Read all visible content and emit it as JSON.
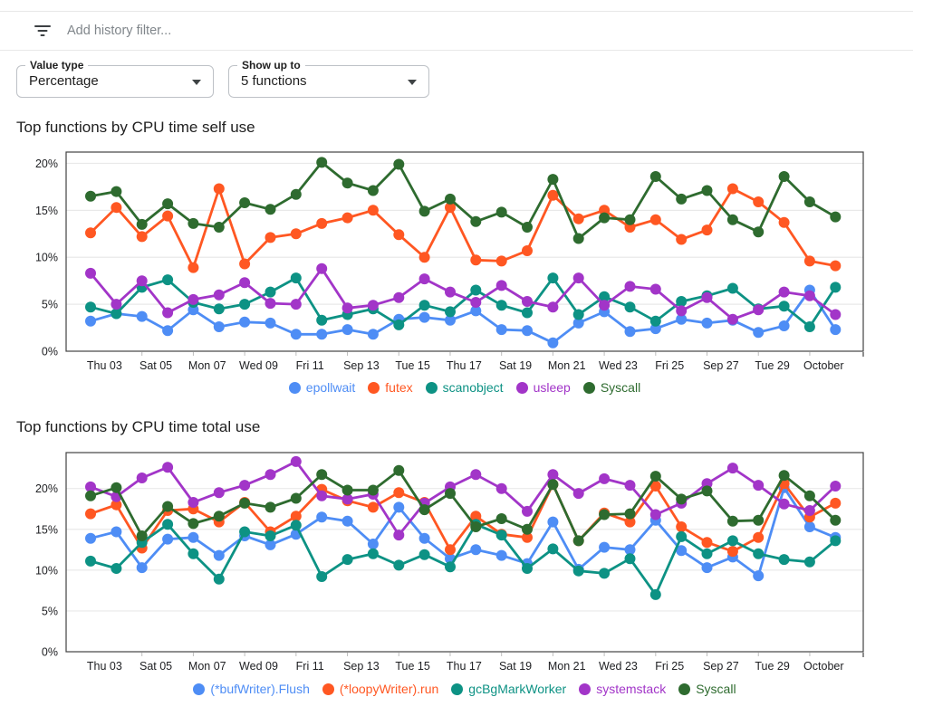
{
  "header": {
    "filter_placeholder": "Add history filter..."
  },
  "controls": {
    "value_type": {
      "label": "Value type",
      "value": "Percentage"
    },
    "show_up_to": {
      "label": "Show up to",
      "value": "5 functions"
    }
  },
  "colors": {
    "series_blue": "#4e8df5",
    "series_orange": "#ff5722",
    "series_teal": "#0d9284",
    "series_purple": "#a235c8",
    "series_green": "#2e6b2f",
    "axis_border": "#424242",
    "gridline": "#e9e9e9",
    "axis_text": "#202124"
  },
  "chart_data": [
    {
      "type": "line",
      "title": "Top functions by CPU time self use",
      "xlabel": "",
      "ylabel": "",
      "ylim": [
        0,
        21.2
      ],
      "grid": "horizontal",
      "legend_position": "bottom",
      "y_tick_labels": [
        "0%",
        "5%",
        "10%",
        "15%",
        "20%"
      ],
      "x_tick_labels": [
        "Thu 03",
        "Sat 05",
        "Mon 07",
        "Wed 09",
        "Fri 11",
        "Sep 13",
        "Tue 15",
        "Thu 17",
        "Sat 19",
        "Mon 21",
        "Wed 23",
        "Fri 25",
        "Sep 27",
        "Tue 29",
        "October"
      ],
      "series": [
        {
          "name": "epollwait",
          "color": "#4e8df5",
          "values": [
            3.2,
            4.0,
            3.7,
            2.2,
            4.4,
            2.6,
            3.1,
            3.0,
            1.8,
            1.8,
            2.3,
            1.8,
            3.4,
            3.6,
            3.3,
            4.3,
            2.3,
            2.2,
            0.9,
            3.0,
            4.2,
            2.1,
            2.4,
            3.4,
            3.0,
            3.3,
            2.0,
            2.7,
            6.5,
            2.3
          ]
        },
        {
          "name": "futex",
          "color": "#ff5722",
          "values": [
            12.6,
            15.3,
            12.2,
            14.4,
            8.9,
            17.3,
            9.3,
            12.1,
            12.5,
            13.6,
            14.2,
            15.0,
            12.4,
            10.0,
            15.3,
            9.7,
            9.6,
            10.7,
            16.6,
            14.1,
            15.0,
            13.2,
            14.0,
            11.9,
            12.9,
            17.3,
            15.9,
            13.7,
            9.6,
            9.1
          ]
        },
        {
          "name": "scanobject",
          "color": "#0d9284",
          "values": [
            4.7,
            4.0,
            6.8,
            7.6,
            5.2,
            4.5,
            5.0,
            6.3,
            7.8,
            3.3,
            3.9,
            4.5,
            2.8,
            4.9,
            4.2,
            6.5,
            4.9,
            4.1,
            7.8,
            3.9,
            5.8,
            4.7,
            3.2,
            5.3,
            5.9,
            6.7,
            4.5,
            4.8,
            2.6,
            6.8
          ]
        },
        {
          "name": "usleep",
          "color": "#a235c8",
          "values": [
            8.3,
            5.0,
            7.5,
            4.1,
            5.5,
            6.0,
            7.3,
            5.1,
            5.0,
            8.8,
            4.6,
            4.9,
            5.7,
            7.7,
            6.3,
            5.2,
            7.0,
            5.3,
            4.7,
            7.8,
            4.9,
            6.9,
            6.6,
            4.3,
            5.7,
            3.4,
            4.4,
            6.3,
            5.9,
            3.9
          ]
        },
        {
          "name": "Syscall",
          "color": "#2e6b2f",
          "values": [
            16.5,
            17.0,
            13.5,
            15.7,
            13.6,
            13.2,
            15.8,
            15.1,
            16.7,
            20.1,
            17.9,
            17.1,
            19.9,
            14.9,
            16.2,
            13.8,
            14.8,
            13.2,
            18.3,
            12.0,
            14.2,
            14.0,
            18.6,
            16.2,
            17.1,
            14.0,
            12.7,
            18.6,
            15.9,
            14.3
          ]
        }
      ]
    },
    {
      "type": "line",
      "title": "Top functions by CPU time total use",
      "xlabel": "",
      "ylabel": "",
      "ylim": [
        0,
        24.4
      ],
      "grid": "horizontal",
      "legend_position": "bottom",
      "y_tick_labels": [
        "0%",
        "5%",
        "10%",
        "15%",
        "20%"
      ],
      "x_tick_labels": [
        "Thu 03",
        "Sat 05",
        "Mon 07",
        "Wed 09",
        "Fri 11",
        "Sep 13",
        "Tue 15",
        "Thu 17",
        "Sat 19",
        "Mon 21",
        "Wed 23",
        "Fri 25",
        "Sep 27",
        "Tue 29",
        "October"
      ],
      "series": [
        {
          "name": "(*bufWriter).Flush",
          "color": "#4e8df5",
          "values": [
            13.9,
            14.7,
            10.3,
            13.8,
            14.0,
            11.8,
            14.2,
            13.1,
            14.4,
            16.5,
            16.0,
            13.2,
            17.7,
            13.9,
            11.4,
            12.5,
            11.8,
            10.8,
            15.9,
            10.1,
            12.8,
            12.5,
            16.1,
            12.4,
            10.3,
            11.6,
            9.3,
            20.1,
            15.3,
            14.0
          ]
        },
        {
          "name": "(*loopyWriter).run",
          "color": "#ff5722",
          "values": [
            16.9,
            18.0,
            12.7,
            17.3,
            17.5,
            15.9,
            18.3,
            14.7,
            16.6,
            19.9,
            18.5,
            17.7,
            19.5,
            18.3,
            12.5,
            16.6,
            14.4,
            14.0,
            20.5,
            13.6,
            17.0,
            15.9,
            20.3,
            15.3,
            13.4,
            12.3,
            14.0,
            20.6,
            16.5,
            18.2
          ]
        },
        {
          "name": "gcBgMarkWorker",
          "color": "#0d9284",
          "values": [
            11.1,
            10.2,
            13.4,
            15.6,
            12.0,
            8.9,
            14.7,
            14.2,
            15.5,
            9.2,
            11.3,
            12.0,
            10.6,
            11.9,
            10.4,
            15.6,
            14.3,
            10.2,
            12.6,
            9.9,
            9.6,
            11.4,
            7.0,
            14.1,
            12.0,
            13.6,
            12.0,
            11.3,
            11.0,
            13.6
          ]
        },
        {
          "name": "systemstack",
          "color": "#a235c8",
          "values": [
            20.2,
            19.0,
            21.3,
            22.6,
            18.3,
            19.5,
            20.4,
            21.7,
            23.3,
            19.1,
            18.7,
            19.3,
            14.3,
            18.2,
            20.2,
            21.7,
            20.0,
            17.2,
            21.7,
            19.4,
            21.2,
            20.4,
            16.8,
            18.2,
            20.6,
            22.5,
            20.4,
            18.1,
            17.3,
            20.3
          ]
        },
        {
          "name": "Syscall",
          "color": "#2e6b2f",
          "values": [
            19.1,
            20.1,
            14.2,
            17.8,
            15.7,
            16.6,
            18.2,
            17.7,
            18.8,
            21.7,
            19.8,
            19.8,
            22.2,
            17.4,
            19.4,
            15.3,
            16.3,
            15.0,
            20.5,
            13.6,
            16.8,
            16.9,
            21.5,
            18.7,
            19.7,
            16.0,
            16.1,
            21.6,
            19.1,
            16.1
          ]
        }
      ]
    }
  ]
}
